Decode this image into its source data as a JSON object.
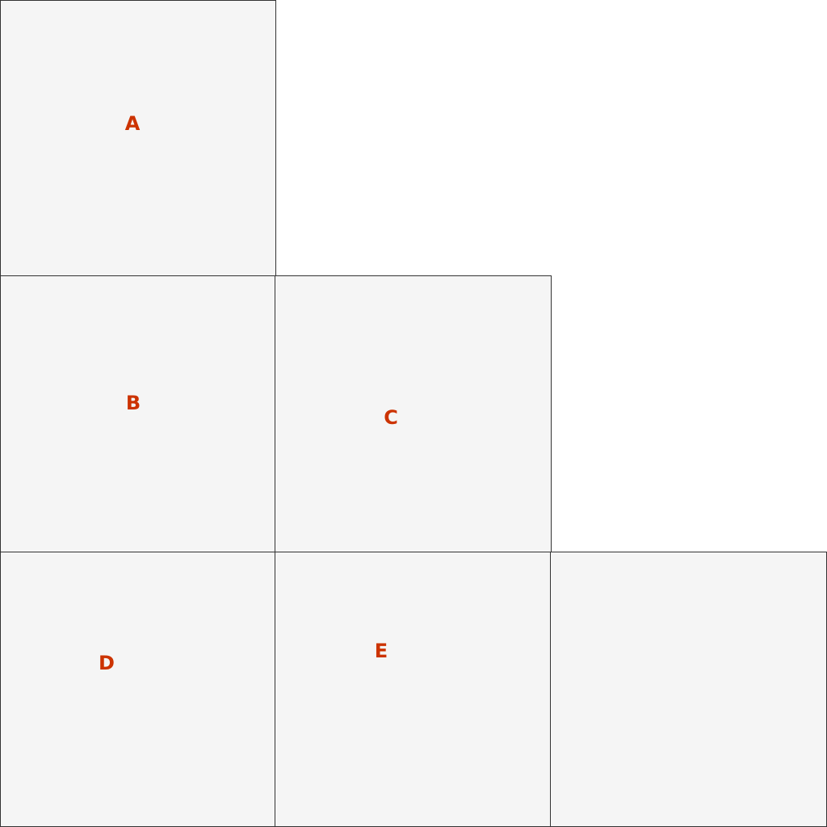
{
  "colors": {
    "label": "#cc3300",
    "cell_fill": "#f5f5f5",
    "cell_border": "#333333",
    "background": "#ffffff"
  },
  "cells": {
    "a": {
      "label": "A"
    },
    "b": {
      "label": "B"
    },
    "c": {
      "label": "C"
    },
    "d": {
      "label": "D"
    },
    "e": {
      "label": "E"
    },
    "f": {
      "label": ""
    }
  }
}
